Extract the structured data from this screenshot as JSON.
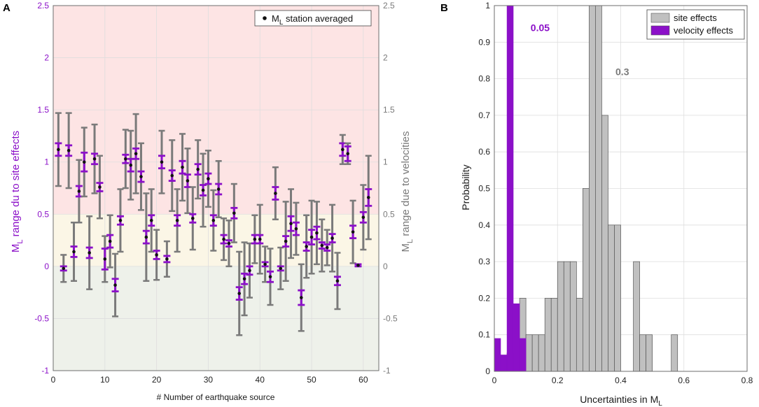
{
  "colors": {
    "purple": "#8b10c8",
    "grey": "#7a7a7a",
    "bar_grey": "#c0c0c0",
    "band_red": "#fde4e4",
    "band_yellow": "#fbf6e6",
    "band_green": "#eef1ea",
    "grid": "#dedede"
  },
  "chart_data": [
    {
      "type": "scatter",
      "panel": "A",
      "title": "",
      "xlabel": "# Number of earthquake source",
      "ylabel_left_main": "M",
      "ylabel_left_sub": "L",
      "ylabel_left_rest": " range du to site effects",
      "ylabel_right_main": "M",
      "ylabel_right_sub": "L",
      "ylabel_right_rest": " range due to velocities",
      "xlim": [
        0,
        63
      ],
      "ylim": [
        -1,
        2.5
      ],
      "xticks": [
        0,
        10,
        20,
        30,
        40,
        50,
        60
      ],
      "yticks": [
        -1,
        -0.5,
        0,
        0.5,
        1,
        1.5,
        2,
        2.5
      ],
      "ytick_labels": [
        "-1",
        "-0.5",
        "0",
        "0.5",
        "1",
        "1.5",
        "2",
        "2.5"
      ],
      "bands": [
        {
          "from": 0.5,
          "to": 2.5,
          "color": "band_red"
        },
        {
          "from": 0,
          "to": 0.5,
          "color": "band_yellow"
        },
        {
          "from": -1,
          "to": 0,
          "color": "band_green"
        }
      ],
      "legend": {
        "marker": "station averaged",
        "main": "M",
        "sub": "L",
        "rest": " station averaged",
        "position": "top-right"
      },
      "points": [
        {
          "x": 1,
          "y": 1.12,
          "site_err": 0.35,
          "vel_err": 0.06
        },
        {
          "x": 2,
          "y": -0.02,
          "site_err": 0.13,
          "vel_err": 0.02
        },
        {
          "x": 3,
          "y": 1.11,
          "site_err": 0.36,
          "vel_err": 0.05
        },
        {
          "x": 4,
          "y": 0.14,
          "site_err": 0.28,
          "vel_err": 0.05
        },
        {
          "x": 5,
          "y": 0.72,
          "site_err": 0.3,
          "vel_err": 0.05
        },
        {
          "x": 6,
          "y": 1.0,
          "site_err": 0.33,
          "vel_err": 0.09
        },
        {
          "x": 7,
          "y": 0.13,
          "site_err": 0.35,
          "vel_err": 0.05
        },
        {
          "x": 8,
          "y": 1.03,
          "site_err": 0.33,
          "vel_err": 0.05
        },
        {
          "x": 9,
          "y": 0.76,
          "site_err": 0.3,
          "vel_err": 0.04
        },
        {
          "x": 10,
          "y": 0.07,
          "site_err": 0.22,
          "vel_err": 0.1
        },
        {
          "x": 11,
          "y": 0.24,
          "site_err": 0.25,
          "vel_err": 0.06
        },
        {
          "x": 12,
          "y": -0.18,
          "site_err": 0.3,
          "vel_err": 0.06
        },
        {
          "x": 13,
          "y": 0.44,
          "site_err": 0.3,
          "vel_err": 0.04
        },
        {
          "x": 14,
          "y": 1.03,
          "site_err": 0.28,
          "vel_err": 0.04
        },
        {
          "x": 15,
          "y": 0.97,
          "site_err": 0.33,
          "vel_err": 0.06
        },
        {
          "x": 16,
          "y": 1.08,
          "site_err": 0.38,
          "vel_err": 0.05
        },
        {
          "x": 17,
          "y": 0.86,
          "site_err": 0.32,
          "vel_err": 0.05
        },
        {
          "x": 18,
          "y": 0.28,
          "site_err": 0.42,
          "vel_err": 0.06
        },
        {
          "x": 19,
          "y": 0.44,
          "site_err": 0.3,
          "vel_err": 0.05
        },
        {
          "x": 20,
          "y": 0.11,
          "site_err": 0.24,
          "vel_err": 0.04
        },
        {
          "x": 21,
          "y": 1.0,
          "site_err": 0.3,
          "vel_err": 0.06
        },
        {
          "x": 22,
          "y": 0.07,
          "site_err": 0.17,
          "vel_err": 0.03
        },
        {
          "x": 23,
          "y": 0.87,
          "site_err": 0.34,
          "vel_err": 0.05
        },
        {
          "x": 24,
          "y": 0.44,
          "site_err": 0.3,
          "vel_err": 0.05
        },
        {
          "x": 25,
          "y": 0.95,
          "site_err": 0.32,
          "vel_err": 0.06
        },
        {
          "x": 26,
          "y": 0.82,
          "site_err": 0.31,
          "vel_err": 0.06
        },
        {
          "x": 27,
          "y": 0.46,
          "site_err": 0.3,
          "vel_err": 0.04
        },
        {
          "x": 28,
          "y": 0.93,
          "site_err": 0.28,
          "vel_err": 0.05
        },
        {
          "x": 29,
          "y": 0.73,
          "site_err": 0.35,
          "vel_err": 0.05
        },
        {
          "x": 30,
          "y": 0.84,
          "site_err": 0.27,
          "vel_err": 0.05
        },
        {
          "x": 31,
          "y": 0.44,
          "site_err": 0.29,
          "vel_err": 0.05
        },
        {
          "x": 32,
          "y": 0.74,
          "site_err": 0.27,
          "vel_err": 0.05
        },
        {
          "x": 33,
          "y": 0.26,
          "site_err": 0.2,
          "vel_err": 0.04
        },
        {
          "x": 34,
          "y": 0.22,
          "site_err": 0.22,
          "vel_err": 0.03
        },
        {
          "x": 35,
          "y": 0.51,
          "site_err": 0.28,
          "vel_err": 0.05
        },
        {
          "x": 36,
          "y": -0.26,
          "site_err": 0.4,
          "vel_err": 0.06
        },
        {
          "x": 37,
          "y": -0.12,
          "site_err": 0.35,
          "vel_err": 0.05
        },
        {
          "x": 38,
          "y": -0.04,
          "site_err": 0.26,
          "vel_err": 0.04
        },
        {
          "x": 39,
          "y": 0.26,
          "site_err": 0.23,
          "vel_err": 0.04
        },
        {
          "x": 40,
          "y": 0.26,
          "site_err": 0.33,
          "vel_err": 0.04
        },
        {
          "x": 41,
          "y": 0.02,
          "site_err": 0.17,
          "vel_err": 0.02
        },
        {
          "x": 42,
          "y": -0.1,
          "site_err": 0.27,
          "vel_err": 0.05
        },
        {
          "x": 43,
          "y": 0.7,
          "site_err": 0.25,
          "vel_err": 0.06
        },
        {
          "x": 44,
          "y": -0.02,
          "site_err": 0.2,
          "vel_err": 0.02
        },
        {
          "x": 45,
          "y": 0.24,
          "site_err": 0.38,
          "vel_err": 0.05
        },
        {
          "x": 46,
          "y": 0.41,
          "site_err": 0.33,
          "vel_err": 0.07
        },
        {
          "x": 47,
          "y": 0.36,
          "site_err": 0.25,
          "vel_err": 0.06
        },
        {
          "x": 48,
          "y": -0.3,
          "site_err": 0.32,
          "vel_err": 0.07
        },
        {
          "x": 49,
          "y": 0.19,
          "site_err": 0.3,
          "vel_err": 0.04
        },
        {
          "x": 50,
          "y": 0.28,
          "site_err": 0.35,
          "vel_err": 0.07
        },
        {
          "x": 51,
          "y": 0.32,
          "site_err": 0.3,
          "vel_err": 0.06
        },
        {
          "x": 52,
          "y": 0.2,
          "site_err": 0.25,
          "vel_err": 0.03
        },
        {
          "x": 53,
          "y": 0.18,
          "site_err": 0.17,
          "vel_err": 0.03
        },
        {
          "x": 54,
          "y": 0.27,
          "site_err": 0.32,
          "vel_err": 0.04
        },
        {
          "x": 55,
          "y": -0.14,
          "site_err": 0.27,
          "vel_err": 0.04
        },
        {
          "x": 56,
          "y": 1.12,
          "site_err": 0.14,
          "vel_err": 0.06
        },
        {
          "x": 57,
          "y": 1.08,
          "site_err": 0.1,
          "vel_err": 0.07
        },
        {
          "x": 58,
          "y": 0.33,
          "site_err": 0.3,
          "vel_err": 0.06
        },
        {
          "x": 59,
          "y": 0.01,
          "site_err": 0.01,
          "vel_err": 0.01
        },
        {
          "x": 60,
          "y": 0.47,
          "site_err": 0.31,
          "vel_err": 0.05
        },
        {
          "x": 61,
          "y": 0.66,
          "site_err": 0.4,
          "vel_err": 0.08
        }
      ]
    },
    {
      "type": "bar",
      "panel": "B",
      "title": "",
      "xlabel_main": "Uncertainties in M",
      "xlabel_sub": "L",
      "ylabel": "Probability",
      "xlim": [
        0,
        0.8
      ],
      "ylim": [
        0,
        1
      ],
      "xticks": [
        0,
        0.2,
        0.4,
        0.6,
        0.8
      ],
      "xtick_labels": [
        "0",
        "0.2",
        "0.4",
        "0.6",
        "0.8"
      ],
      "yticks": [
        0,
        0.1,
        0.2,
        0.3,
        0.4,
        0.5,
        0.6,
        0.7,
        0.8,
        0.9,
        1
      ],
      "ytick_labels": [
        "0",
        "0.1",
        "0.2",
        "0.3",
        "0.4",
        "0.5",
        "0.6",
        "0.7",
        "0.8",
        "0.9",
        "1"
      ],
      "bin_width": 0.02,
      "legend": {
        "position": "top-right"
      },
      "series": [
        {
          "name": "site effects",
          "color": "bar_grey",
          "bins": [
            {
              "x": 0.04,
              "value": 0.05
            },
            {
              "x": 0.08,
              "value": 0.2
            },
            {
              "x": 0.1,
              "value": 0.1
            },
            {
              "x": 0.12,
              "value": 0.1
            },
            {
              "x": 0.14,
              "value": 0.1
            },
            {
              "x": 0.16,
              "value": 0.2
            },
            {
              "x": 0.18,
              "value": 0.2
            },
            {
              "x": 0.2,
              "value": 0.3
            },
            {
              "x": 0.22,
              "value": 0.3
            },
            {
              "x": 0.24,
              "value": 0.3
            },
            {
              "x": 0.26,
              "value": 0.2
            },
            {
              "x": 0.28,
              "value": 0.5
            },
            {
              "x": 0.3,
              "value": 1.0
            },
            {
              "x": 0.32,
              "value": 1.0
            },
            {
              "x": 0.34,
              "value": 0.7
            },
            {
              "x": 0.36,
              "value": 0.4
            },
            {
              "x": 0.38,
              "value": 0.4
            },
            {
              "x": 0.44,
              "value": 0.3
            },
            {
              "x": 0.46,
              "value": 0.1
            },
            {
              "x": 0.48,
              "value": 0.1
            },
            {
              "x": 0.56,
              "value": 0.1
            }
          ]
        },
        {
          "name": "velocity effects",
          "color": "purple",
          "bins": [
            {
              "x": 0.0,
              "value": 0.09
            },
            {
              "x": 0.02,
              "value": 0.045
            },
            {
              "x": 0.04,
              "value": 1.0
            },
            {
              "x": 0.06,
              "value": 0.185
            },
            {
              "x": 0.08,
              "value": 0.09
            }
          ]
        }
      ],
      "annotations": [
        {
          "text": "0.05",
          "x": 0.145,
          "y": 0.93,
          "color": "purple"
        },
        {
          "text": "0.3",
          "x": 0.405,
          "y": 0.81,
          "color": "grey"
        }
      ]
    }
  ],
  "panel_labels": {
    "a": "A",
    "b": "B"
  }
}
